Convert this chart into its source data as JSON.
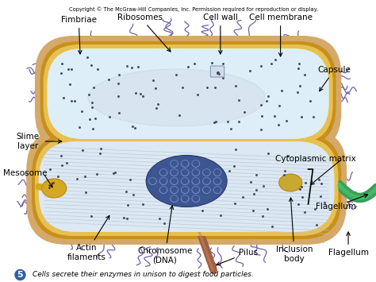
{
  "title": "Copyright © The McGraw-Hill Companies, Inc. Permission required for reproduction or display.",
  "caption_num": "5",
  "caption_text": "Cells secrete their enzymes in unison to digest food particles.",
  "bg_color": "#ffffff",
  "outer_capsule_color": "#d4a96a",
  "cell_wall_color": "#c8901a",
  "membrane_color": "#e8c050",
  "membrane_inner_color": "#dab840",
  "cytoplasm_top_color": "#ddeef8",
  "cytoplasm_bottom_color": "#e2ecf5",
  "cytoplasm_bottom_color2": "#ccd8e8",
  "nucleoid_color": "#e8f0f8",
  "nucleoid_inner_color": "#d8e4f0",
  "chromosome_color": "#384e80",
  "chromosome_inner": "#4a68a8",
  "fimbriae_color": "#7060a8",
  "flagellum_color": "#38a058",
  "mesosome_color": "#d4a820",
  "mesosome_edge": "#b88810",
  "ribosome_color": "#404060",
  "inclusion_color": "#c8a830",
  "actin_color": "#b8c4d4",
  "pilus_color": "#a06040",
  "slime_color": "#e8d090"
}
